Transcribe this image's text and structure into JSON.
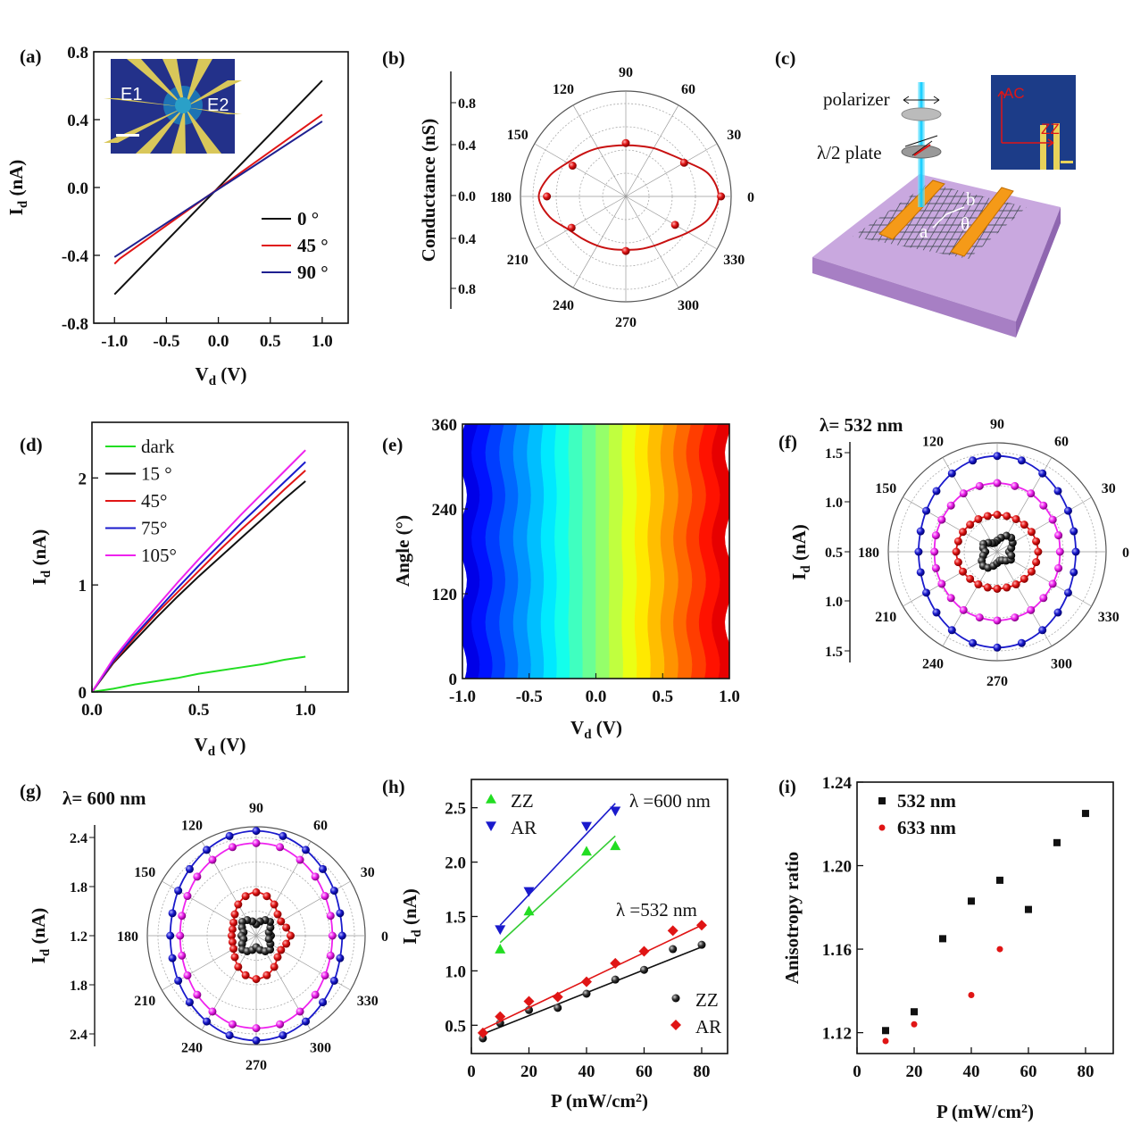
{
  "colors": {
    "black": "#111111",
    "red": "#e01515",
    "blue": "#1a1acc",
    "navy": "#1f2090",
    "green": "#22dd22",
    "magenta": "#ee22ee"
  },
  "chart_data": [
    {
      "panel": "(a)",
      "type": "line",
      "xlabel": [
        {
          "t": "V"
        },
        {
          "t": "d",
          "sub": true
        },
        {
          "t": " (V)"
        }
      ],
      "ylabel": [
        {
          "t": "I"
        },
        {
          "t": "d",
          "sub": true
        },
        {
          "t": " (nA)"
        }
      ],
      "xlim": [
        -1.2,
        1.25
      ],
      "ylim": [
        -0.8,
        0.8
      ],
      "xticks": [
        -1.0,
        -0.5,
        0.0,
        0.5,
        1.0
      ],
      "xticklabels": [
        "-1.0",
        "-0.5",
        "0.0",
        "0.5",
        "1.0"
      ],
      "yticks": [
        0.8,
        0.4,
        0.0,
        -0.4,
        -0.8
      ],
      "yticklabels": [
        "0.8",
        "0.4",
        "0.0",
        "-0.4",
        "-0.8"
      ],
      "legend_position": "bottom-right",
      "series": [
        {
          "name": "0 °",
          "color": "#111111",
          "x": [
            -1.0,
            1.0
          ],
          "y": [
            -0.63,
            0.63
          ]
        },
        {
          "name": "45 °",
          "color": "#e01515",
          "x": [
            -1.0,
            -0.95,
            1.0
          ],
          "y": [
            -0.45,
            -0.42,
            0.43
          ]
        },
        {
          "name": "90 °",
          "color": "#1f2090",
          "x": [
            -1.0,
            1.0
          ],
          "y": [
            -0.41,
            0.39
          ]
        }
      ],
      "inset": {
        "labels": [
          "E1",
          "E2"
        ]
      }
    },
    {
      "panel": "(b)",
      "type": "polar",
      "ylabel": [
        {
          "t": "Conductance (nS)"
        }
      ],
      "radial_ticklabels": [
        "0.8",
        "0.4",
        "0.0",
        "0.4",
        "0.8"
      ],
      "angle_labels": [
        "0",
        "30",
        "60",
        "90",
        "120",
        "150",
        "180",
        "210",
        "240",
        "270",
        "300",
        "330"
      ],
      "fit_angles": [
        0,
        15,
        30,
        45,
        60,
        75,
        90,
        105,
        120,
        135,
        150,
        165,
        180,
        195,
        210,
        225,
        240,
        255,
        270,
        285,
        300,
        315,
        330,
        345
      ],
      "fit_values": [
        0.8,
        0.74,
        0.6,
        0.52,
        0.48,
        0.45,
        0.44,
        0.45,
        0.48,
        0.52,
        0.58,
        0.68,
        0.75,
        0.68,
        0.57,
        0.52,
        0.49,
        0.47,
        0.46,
        0.47,
        0.49,
        0.53,
        0.62,
        0.74
      ],
      "point_angles": [
        0,
        30,
        90,
        150,
        180,
        210,
        270,
        330
      ],
      "point_values": [
        0.82,
        0.58,
        0.46,
        0.53,
        0.68,
        0.54,
        0.47,
        0.49
      ],
      "color": "#e01515"
    },
    {
      "panel": "(d)",
      "type": "line",
      "xlabel": [
        {
          "t": "V"
        },
        {
          "t": "d",
          "sub": true
        },
        {
          "t": " (V)"
        }
      ],
      "ylabel": [
        {
          "t": "I"
        },
        {
          "t": "d",
          "sub": true
        },
        {
          "t": " (nA)"
        }
      ],
      "xlim": [
        0,
        1.2
      ],
      "ylim": [
        0,
        2.52
      ],
      "xticks": [
        0.0,
        0.5,
        1.0
      ],
      "xticklabels": [
        "0.0",
        "0.5",
        "1.0"
      ],
      "yticks": [
        0,
        1,
        2
      ],
      "yticklabels": [
        "0",
        "1",
        "2"
      ],
      "legend_position": "top-left",
      "x": [
        0,
        0.1,
        0.2,
        0.3,
        0.4,
        0.5,
        0.6,
        0.7,
        0.8,
        0.9,
        1.0
      ],
      "series": [
        {
          "name": "dark",
          "color": "#22dd22",
          "y": [
            0,
            0.03,
            0.07,
            0.1,
            0.13,
            0.17,
            0.2,
            0.23,
            0.26,
            0.3,
            0.33
          ]
        },
        {
          "name": "15 °",
          "color": "#111111",
          "y": [
            0,
            0.27,
            0.48,
            0.69,
            0.89,
            1.08,
            1.26,
            1.44,
            1.62,
            1.8,
            1.97
          ]
        },
        {
          "name": "45°",
          "color": "#e01515",
          "y": [
            0,
            0.28,
            0.51,
            0.73,
            0.93,
            1.13,
            1.33,
            1.52,
            1.7,
            1.89,
            2.07
          ]
        },
        {
          "name": "75°",
          "color": "#1a1acc",
          "y": [
            0,
            0.29,
            0.53,
            0.75,
            0.97,
            1.18,
            1.38,
            1.58,
            1.77,
            1.96,
            2.15
          ]
        },
        {
          "name": "105°",
          "color": "#ee22ee",
          "y": [
            0,
            0.31,
            0.56,
            0.79,
            1.02,
            1.24,
            1.45,
            1.66,
            1.86,
            2.06,
            2.26
          ]
        }
      ]
    },
    {
      "panel": "(e)",
      "type": "heatmap",
      "colormap": "jet",
      "xlabel": [
        {
          "t": "V"
        },
        {
          "t": "d",
          "sub": true
        },
        {
          "t": "  (V)"
        }
      ],
      "ylabel": [
        {
          "t": "Angle  (°)"
        }
      ],
      "xlim": [
        -1.0,
        1.0
      ],
      "ylim": [
        0,
        360
      ],
      "xticks": [
        -1.0,
        -0.5,
        0.0,
        0.5,
        1.0
      ],
      "xticklabels": [
        "-1.0",
        "-0.5",
        "0.0",
        "0.5",
        "1.0"
      ],
      "yticks": [
        0,
        120,
        240,
        360
      ],
      "yticklabels": [
        "0",
        "120",
        "240",
        "360"
      ]
    },
    {
      "panel": "(f)",
      "type": "polar",
      "title": "λ= 532 nm",
      "ylabel": [
        {
          "t": "I"
        },
        {
          "t": "d",
          "sub": true
        },
        {
          "t": " (nA)"
        }
      ],
      "radial_ticklabels": [
        "1.5",
        "1.0",
        "0.5",
        "1.0",
        "1.5"
      ],
      "angle_labels": [
        "0",
        "30",
        "60",
        "90",
        "120",
        "150",
        "180",
        "210",
        "240",
        "270",
        "300",
        "330"
      ],
      "angles": [
        0,
        15,
        30,
        45,
        60,
        75,
        90,
        105,
        120,
        135,
        150,
        165,
        180,
        195,
        210,
        225,
        240,
        255,
        270,
        285,
        300,
        315,
        330,
        345
      ],
      "series": [
        {
          "color": "#1a1acc",
          "values": [
            1.19,
            1.2,
            1.24,
            1.3,
            1.37,
            1.43,
            1.45,
            1.43,
            1.37,
            1.3,
            1.24,
            1.2,
            1.19,
            1.2,
            1.24,
            1.3,
            1.37,
            1.43,
            1.45,
            1.43,
            1.37,
            1.3,
            1.24,
            1.2
          ]
        },
        {
          "color": "#ee22ee",
          "values": [
            0.95,
            0.96,
            0.97,
            0.99,
            1.02,
            1.03,
            1.04,
            1.03,
            1.02,
            0.99,
            0.97,
            0.96,
            0.95,
            0.96,
            0.97,
            0.99,
            1.02,
            1.03,
            1.04,
            1.03,
            1.02,
            0.99,
            0.97,
            0.96
          ]
        },
        {
          "color": "#e01515",
          "values": [
            0.62,
            0.61,
            0.6,
            0.58,
            0.57,
            0.56,
            0.56,
            0.56,
            0.57,
            0.58,
            0.6,
            0.61,
            0.62,
            0.61,
            0.6,
            0.58,
            0.57,
            0.56,
            0.56,
            0.56,
            0.57,
            0.58,
            0.6,
            0.61
          ]
        },
        {
          "color": "#111111",
          "values": [
            0.18,
            0.22,
            0.27,
            0.3,
            0.28,
            0.22,
            0.17,
            0.14,
            0.15,
            0.19,
            0.24,
            0.22,
            0.18,
            0.22,
            0.27,
            0.3,
            0.28,
            0.22,
            0.17,
            0.14,
            0.15,
            0.19,
            0.24,
            0.22
          ]
        }
      ]
    },
    {
      "panel": "(g)",
      "type": "polar",
      "title": "λ= 600 nm",
      "ylabel": [
        {
          "t": "I"
        },
        {
          "t": "d",
          "sub": true
        },
        {
          "t": " (nA)"
        }
      ],
      "radial_ticklabels": [
        "2.4",
        "1.8",
        "1.2",
        "1.8",
        "2.4"
      ],
      "angle_labels": [
        "0",
        "30",
        "60",
        "90",
        "120",
        "150",
        "180",
        "210",
        "240",
        "270",
        "300",
        "330"
      ],
      "angles": [
        0,
        15,
        30,
        45,
        60,
        75,
        90,
        105,
        120,
        135,
        150,
        165,
        180,
        195,
        210,
        225,
        240,
        255,
        270,
        285,
        300,
        315,
        330,
        345
      ],
      "series": [
        {
          "color": "#1a1acc",
          "values": [
            2.25,
            2.26,
            2.3,
            2.35,
            2.41,
            2.46,
            2.48,
            2.46,
            2.41,
            2.35,
            2.3,
            2.26,
            2.25,
            2.26,
            2.3,
            2.35,
            2.41,
            2.46,
            2.48,
            2.46,
            2.41,
            2.35,
            2.3,
            2.26
          ]
        },
        {
          "color": "#ee22ee",
          "values": [
            2.13,
            2.14,
            2.17,
            2.22,
            2.27,
            2.32,
            2.33,
            2.32,
            2.27,
            2.22,
            2.17,
            2.14,
            2.13,
            2.14,
            2.17,
            2.22,
            2.27,
            2.32,
            2.33,
            2.32,
            2.27,
            2.22,
            2.17,
            2.14
          ]
        },
        {
          "color": "#e01515",
          "values": [
            1.62,
            1.58,
            1.55,
            1.57,
            1.64,
            1.7,
            1.73,
            1.7,
            1.64,
            1.57,
            1.52,
            1.5,
            1.5,
            1.5,
            1.52,
            1.57,
            1.64,
            1.7,
            1.73,
            1.7,
            1.64,
            1.57,
            1.55,
            1.58
          ]
        },
        {
          "color": "#111111",
          "values": [
            1.38,
            1.36,
            1.4,
            1.44,
            1.42,
            1.38,
            1.34,
            1.38,
            1.42,
            1.44,
            1.4,
            1.36,
            1.38,
            1.36,
            1.4,
            1.44,
            1.42,
            1.38,
            1.34,
            1.38,
            1.42,
            1.44,
            1.4,
            1.36
          ]
        }
      ]
    },
    {
      "panel": "(h)",
      "type": "scatter",
      "xlabel": [
        {
          "t": "P (mW/cm"
        },
        {
          "t": "2",
          "sup": true
        },
        {
          "t": ")"
        }
      ],
      "ylabel": [
        {
          "t": "I"
        },
        {
          "t": "d",
          "sub": true
        },
        {
          "t": " (nA)"
        }
      ],
      "xlim": [
        0,
        89
      ],
      "ylim": [
        0.24,
        2.76
      ],
      "xticks": [
        0,
        20,
        40,
        60,
        80
      ],
      "xticklabels": [
        "0",
        "20",
        "40",
        "60",
        "80"
      ],
      "yticks": [
        0.5,
        1.0,
        1.5,
        2.0,
        2.5
      ],
      "yticklabels": [
        "0.5",
        "1.0",
        "1.5",
        "2.0",
        "2.5"
      ],
      "annotations": [
        "λ =600 nm",
        "λ =532 nm"
      ],
      "series": [
        {
          "name": "ZZ",
          "group": "600 nm",
          "marker": "triangle-up",
          "color": "#22dd22",
          "x": [
            10,
            20,
            40,
            50
          ],
          "y": [
            1.2,
            1.55,
            2.1,
            2.15
          ],
          "fit": [
            [
              10,
              1.26
            ],
            [
              50,
              2.24
            ]
          ]
        },
        {
          "name": "AR",
          "group": "600 nm",
          "marker": "triangle-down",
          "color": "#1a1acc",
          "x": [
            10,
            20,
            40,
            50
          ],
          "y": [
            1.38,
            1.73,
            2.33,
            2.47
          ],
          "fit": [
            [
              10,
              1.42
            ],
            [
              50,
              2.54
            ]
          ]
        },
        {
          "name": "ZZ",
          "group": "532 nm",
          "marker": "sphere",
          "color": "#111111",
          "x": [
            4,
            10,
            20,
            30,
            40,
            50,
            60,
            70,
            80
          ],
          "y": [
            0.38,
            0.52,
            0.64,
            0.66,
            0.79,
            0.92,
            1.01,
            1.2,
            1.24
          ],
          "fit": [
            [
              4,
              0.42
            ],
            [
              80,
              1.22
            ]
          ]
        },
        {
          "name": "AR",
          "group": "532 nm",
          "marker": "diamond",
          "color": "#e01515",
          "x": [
            4,
            10,
            20,
            30,
            40,
            50,
            60,
            70,
            80
          ],
          "y": [
            0.43,
            0.58,
            0.72,
            0.76,
            0.9,
            1.07,
            1.18,
            1.37,
            1.42
          ],
          "fit": [
            [
              4,
              0.46
            ],
            [
              80,
              1.42
            ]
          ]
        }
      ]
    },
    {
      "panel": "(i)",
      "type": "scatter",
      "xlabel": [
        {
          "t": "P (mW/cm"
        },
        {
          "t": "2",
          "sup": true
        },
        {
          "t": ")"
        }
      ],
      "ylabel": [
        {
          "t": "Anisotropy ratio"
        }
      ],
      "xlim": [
        0,
        89.7
      ],
      "ylim": [
        1.11,
        1.24
      ],
      "xticks": [
        0,
        20,
        40,
        60,
        80
      ],
      "xticklabels": [
        "0",
        "20",
        "40",
        "60",
        "80"
      ],
      "yticks": [
        1.12,
        1.16,
        1.2,
        1.24
      ],
      "yticklabels": [
        "1.12",
        "1.16",
        "1.20",
        "1.24"
      ],
      "legend_position": "top-left",
      "series": [
        {
          "name": "532 nm",
          "marker": "square",
          "color": "#111111",
          "x": [
            10,
            20,
            30,
            40,
            50,
            60,
            70,
            80
          ],
          "y": [
            1.121,
            1.13,
            1.165,
            1.183,
            1.193,
            1.179,
            1.211,
            1.225
          ]
        },
        {
          "name": "633 nm",
          "marker": "circle",
          "color": "#e01515",
          "x": [
            10,
            20,
            40,
            50
          ],
          "y": [
            1.116,
            1.124,
            1.138,
            1.16
          ]
        }
      ]
    }
  ],
  "schematic_c": {
    "panel": "(c)",
    "polarizer": "polarizer",
    "halfwave": "λ/2 plate",
    "a": "a",
    "b": "b",
    "theta": "θ",
    "inset_ac": "AC",
    "inset_zz": "ZZ"
  }
}
